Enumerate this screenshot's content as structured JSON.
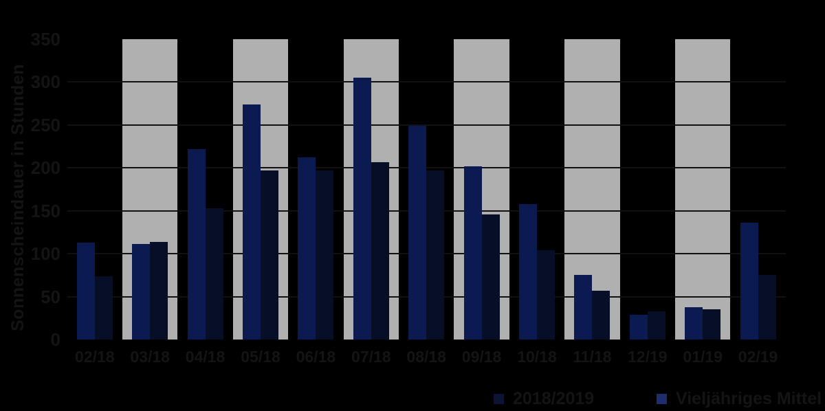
{
  "chart_data": {
    "type": "bar",
    "title": "",
    "xlabel": "",
    "ylabel": "Sonnenscheindauer in Stunden",
    "ylim": [
      0,
      350
    ],
    "yticks": [
      0,
      50,
      100,
      150,
      200,
      250,
      300,
      350
    ],
    "grid": "horizontal",
    "background_color": "#000000",
    "band_color": "#B0B0B0",
    "banded_category_indices": [
      1,
      3,
      5,
      7,
      9,
      11
    ],
    "categories": [
      "02/18",
      "03/18",
      "04/18",
      "05/18",
      "06/18",
      "07/18",
      "08/18",
      "09/18",
      "10/18",
      "11/18",
      "12/19",
      "01/19",
      "02/19"
    ],
    "series": [
      {
        "name": "2018/2019",
        "color": "#070F26",
        "bar_position": "right",
        "values": [
          74,
          114,
          153,
          197,
          197,
          207,
          197,
          146,
          104,
          57,
          33,
          35,
          75
        ]
      },
      {
        "name": "Vieljähriges Mittel",
        "color": "#0B1B52",
        "bar_position": "left",
        "values": [
          113,
          111,
          222,
          274,
          212,
          305,
          249,
          202,
          158,
          75,
          29,
          38,
          136
        ]
      }
    ],
    "legend": {
      "position": "bottom-right",
      "entries": [
        {
          "label": "2018/2019",
          "swatch_color": "#0D1333"
        },
        {
          "label": "Vieljähriges Mittel",
          "swatch_color": "#1D2D6E"
        }
      ]
    }
  }
}
